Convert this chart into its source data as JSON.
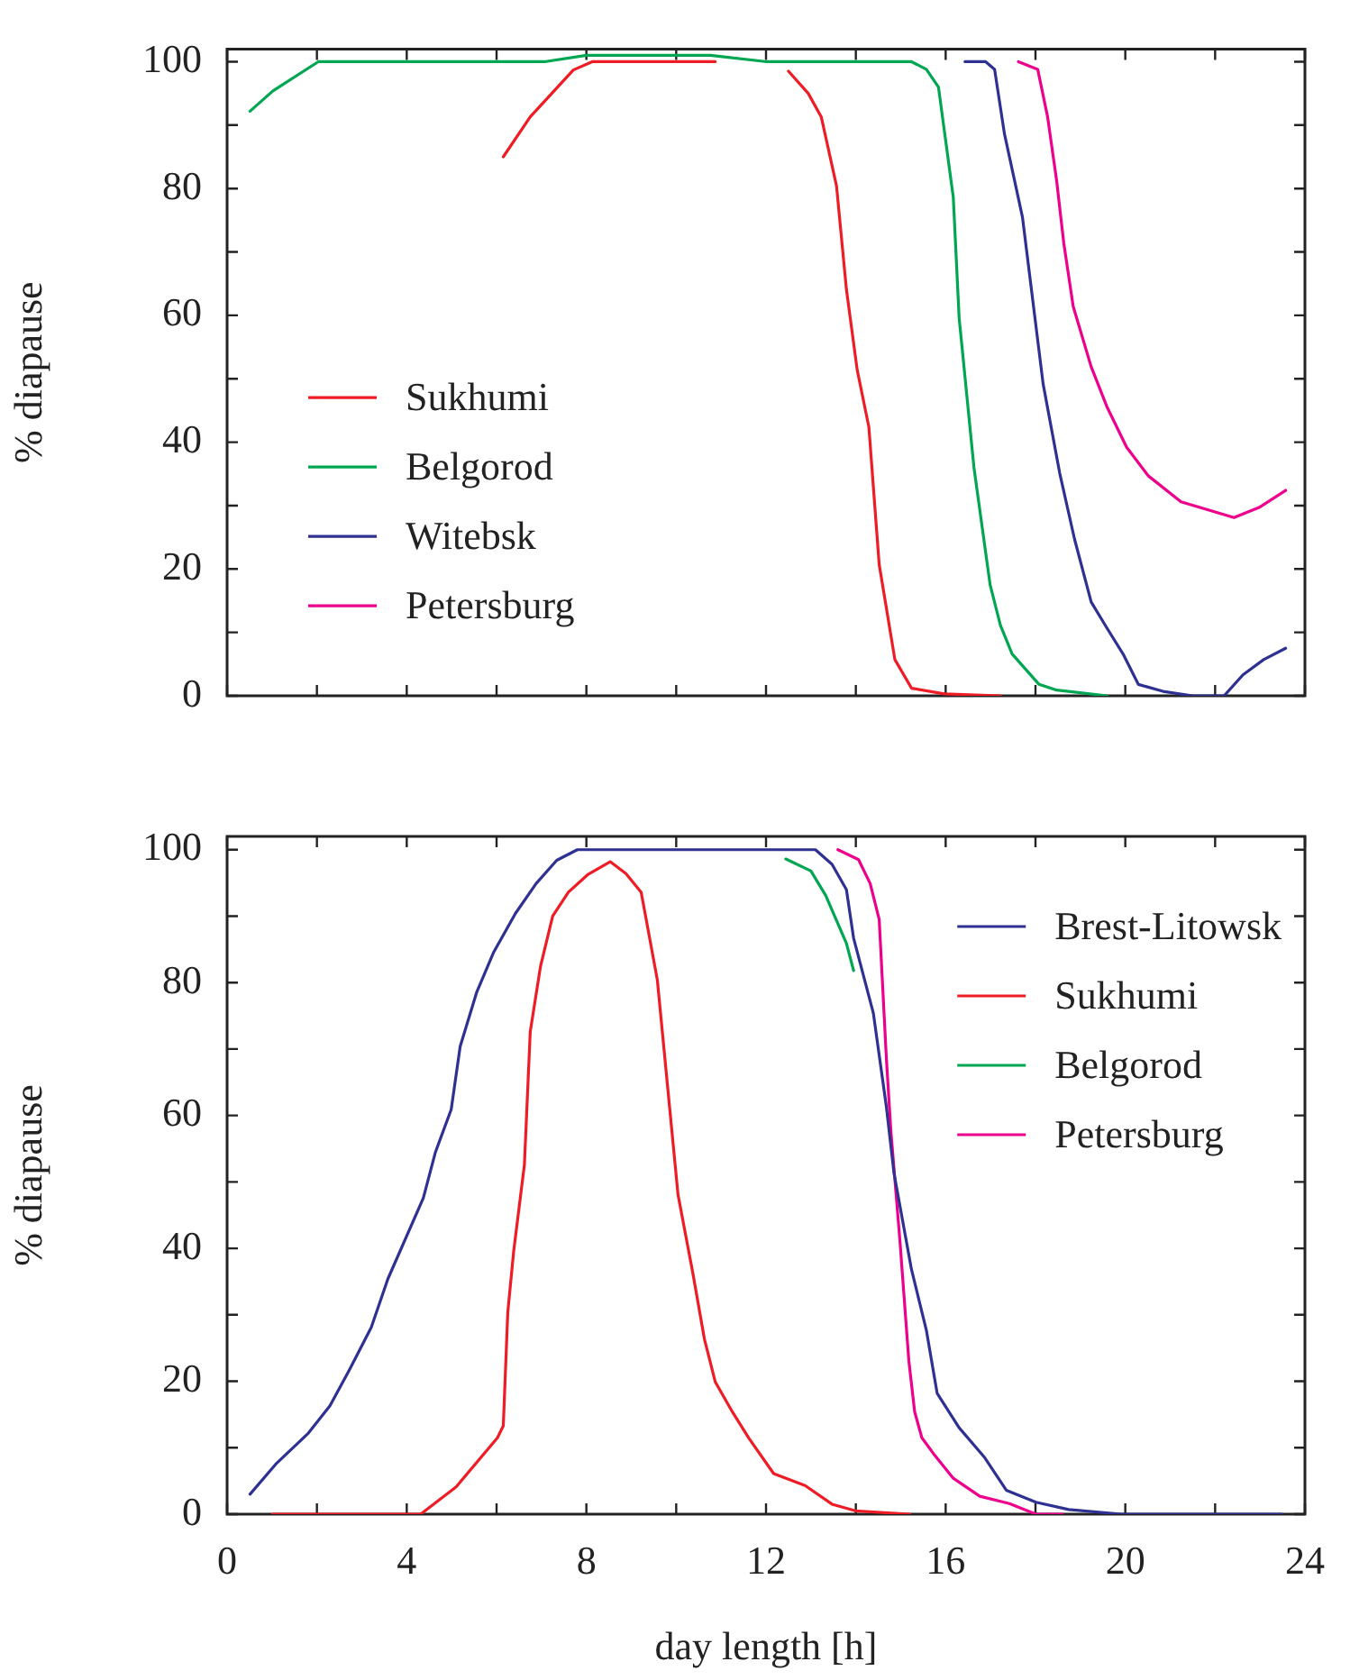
{
  "chart_data": [
    {
      "type": "line",
      "ylabel": "% diapause",
      "xlim": [
        0,
        24
      ],
      "xticks": [
        0,
        {
          "value": 2,
          "label": null
        },
        4,
        {
          "value": 6,
          "label": null
        },
        8,
        {
          "value": 10,
          "label": null
        },
        12,
        {
          "value": 14,
          "label": null
        },
        16,
        {
          "value": 18,
          "label": null
        },
        20,
        {
          "value": 22,
          "label": null
        },
        24
      ],
      "ylim": [
        0,
        102
      ],
      "yticks": [
        0,
        {
          "value": 10,
          "label": null
        },
        20,
        {
          "value": 30,
          "label": null
        },
        40,
        {
          "value": 50,
          "label": null
        },
        60,
        {
          "value": 70,
          "label": null
        },
        80,
        {
          "value": 90,
          "label": null
        },
        100
      ],
      "tick_labels": "y",
      "legend": "left",
      "marker": "none",
      "line_style": "solid",
      "series": [
        {
          "name": "Sukhumi",
          "color": "#ee1c25",
          "x": [
            6.15,
            6.75,
            7.71,
            8.13,
            10.87,
            11.7,
            12.5,
            12.94,
            13.23,
            13.57,
            13.79,
            14.03,
            14.29,
            14.52,
            14.87,
            15.24,
            15.97,
            17.22
          ],
          "values": [
            85,
            91.3,
            98.7,
            100,
            100,
            null,
            98.5,
            95,
            91.3,
            80.4,
            64.1,
            51.4,
            42.4,
            20.7,
            5.7,
            1.2,
            0.3,
            0
          ]
        },
        {
          "name": "Belgorod",
          "color": "#00a651",
          "x": [
            0.51,
            1.02,
            2.03,
            7.07,
            8.0,
            10.76,
            12.02,
            15.24,
            15.57,
            15.84,
            16.17,
            16.3,
            16.63,
            16.99,
            17.22,
            17.48,
            18.08,
            18.47,
            19.6
          ],
          "values": [
            92.2,
            95.4,
            100,
            100,
            101,
            101,
            100,
            100,
            98.8,
            96,
            78.6,
            59.6,
            36,
            17.5,
            11.1,
            6.6,
            1.8,
            0.9,
            0
          ]
        },
        {
          "name": "Witebsk",
          "color": "#2e3192",
          "x": [
            16.43,
            16.89,
            17.09,
            17.31,
            17.71,
            18.17,
            18.54,
            18.87,
            19.24,
            19.59,
            19.95,
            20.29,
            20.84,
            21.5,
            22.2,
            22.62,
            23.08,
            23.57
          ],
          "values": [
            100,
            100,
            98.8,
            88.6,
            75.5,
            49.2,
            35.1,
            24.7,
            14.8,
            10.7,
            6.6,
            1.8,
            0.7,
            0,
            0,
            3.3,
            5.7,
            7.5
          ]
        },
        {
          "name": "Petersburg",
          "color": "#ec008c",
          "x": [
            17.62,
            18.05,
            18.27,
            18.47,
            18.63,
            18.84,
            19.24,
            19.59,
            20.03,
            20.51,
            21.24,
            22.42,
            22.98,
            23.57
          ],
          "values": [
            100,
            98.8,
            91.3,
            81.3,
            71.4,
            61.4,
            51.9,
            45.6,
            39.2,
            34.7,
            30.6,
            28.1,
            29.7,
            32.4
          ]
        }
      ]
    },
    {
      "type": "line",
      "xlabel": "day length [h]",
      "ylabel": "% diapause",
      "xlim": [
        0,
        24
      ],
      "xticks": [
        0,
        {
          "value": 2,
          "label": null
        },
        4,
        {
          "value": 6,
          "label": null
        },
        8,
        {
          "value": 10,
          "label": null
        },
        12,
        {
          "value": 14,
          "label": null
        },
        16,
        {
          "value": 18,
          "label": null
        },
        20,
        {
          "value": 22,
          "label": null
        },
        24
      ],
      "ylim": [
        0,
        102
      ],
      "yticks": [
        0,
        {
          "value": 10,
          "label": null
        },
        20,
        {
          "value": 30,
          "label": null
        },
        40,
        {
          "value": 50,
          "label": null
        },
        60,
        {
          "value": 70,
          "label": null
        },
        80,
        {
          "value": 90,
          "label": null
        },
        100
      ],
      "legend": "top right",
      "marker": "none",
      "line_style": "solid",
      "series": [
        {
          "name": "Brest-Litowsk",
          "color": "#2e3192",
          "x": [
            0.51,
            1.08,
            1.81,
            2.29,
            2.73,
            3.21,
            3.58,
            4.37,
            4.64,
            4.99,
            5.19,
            5.56,
            5.93,
            6.42,
            6.88,
            7.34,
            7.8,
            13.1,
            13.47,
            13.79,
            13.95,
            14.39,
            14.68,
            14.85,
            15.24,
            15.57,
            15.81,
            16.3,
            16.87,
            17.35,
            18.01,
            18.74,
            19.92,
            23.48
          ],
          "values": [
            3,
            7.5,
            12.2,
            16.3,
            21.8,
            28.1,
            35.4,
            47.6,
            54.5,
            60.9,
            70.4,
            78.6,
            84.5,
            90.4,
            94.9,
            98.4,
            100,
            100,
            97.8,
            94,
            86.7,
            75.4,
            61.3,
            51.3,
            36.8,
            27.7,
            18.2,
            13,
            8.5,
            3.6,
            1.8,
            0.7,
            0,
            0
          ]
        },
        {
          "name": "Sukhumi",
          "color": "#ee1c25",
          "x": [
            1.01,
            4.31,
            5.1,
            6.02,
            6.15,
            6.25,
            6.38,
            6.62,
            6.75,
            6.98,
            7.25,
            7.6,
            8.04,
            8.53,
            8.88,
            9.22,
            9.58,
            10.04,
            10.37,
            10.63,
            10.87,
            11.25,
            11.62,
            12.17,
            12.87,
            13.47,
            13.99,
            15.2
          ],
          "values": [
            0,
            0,
            4.1,
            11.5,
            13.3,
            30.4,
            39.5,
            52.6,
            72.6,
            82.5,
            90,
            93.6,
            96.3,
            98.2,
            96.4,
            93.6,
            80.4,
            48.1,
            36.3,
            26.3,
            19.9,
            15.4,
            11.4,
            6.1,
            4.3,
            1.5,
            0.5,
            0
          ]
        },
        {
          "name": "Belgorod",
          "color": "#00a651",
          "x": [
            12.44,
            13.0,
            13.33,
            13.79,
            13.95
          ],
          "values": [
            98.6,
            96.8,
            93.1,
            85.9,
            81.8
          ]
        },
        {
          "name": "Petersburg",
          "color": "#ec008c",
          "x": [
            13.6,
            14.06,
            14.32,
            14.52,
            14.68,
            14.78,
            14.98,
            15.18,
            15.31,
            15.47,
            15.73,
            16.17,
            16.76,
            17.42,
            18.01,
            18.6
          ],
          "values": [
            100,
            98.5,
            94.9,
            89.5,
            68.6,
            57.7,
            41.3,
            23.1,
            15.4,
            11.5,
            9.1,
            5.4,
            2.7,
            1.6,
            0,
            0
          ]
        }
      ]
    }
  ]
}
